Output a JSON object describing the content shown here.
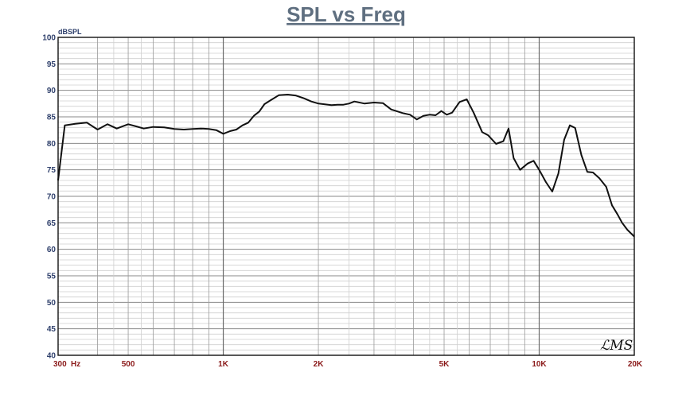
{
  "chart_data": {
    "type": "line",
    "title": "SPL vs Freq",
    "ylabel": "dBSPL",
    "xlabel": "",
    "x_scale": "log",
    "xlim": [
      300,
      20000
    ],
    "ylim": [
      40,
      100
    ],
    "grid": true,
    "y_ticks": [
      "100",
      "95",
      "90",
      "85",
      "80",
      "75",
      "70",
      "65",
      "60",
      "55",
      "50",
      "45",
      "40"
    ],
    "x_ticks": [
      {
        "value": 300,
        "label": "300"
      },
      {
        "value": 500,
        "label": "500"
      },
      {
        "value": 1000,
        "label": "1K"
      },
      {
        "value": 2000,
        "label": "2K"
      },
      {
        "value": 5000,
        "label": "5K"
      },
      {
        "value": 10000,
        "label": "10K"
      },
      {
        "value": 20000,
        "label": "20K"
      }
    ],
    "x_unit": "Hz",
    "line_color": "#111111",
    "series": [
      {
        "x": [
          300,
          315,
          340,
          370,
          400,
          430,
          460,
          500,
          530,
          560,
          600,
          650,
          700,
          750,
          800,
          850,
          900,
          950,
          1000,
          1050,
          1100,
          1150,
          1200,
          1250,
          1300,
          1350,
          1400,
          1500,
          1600,
          1700,
          1800,
          1900,
          2000,
          2200,
          2300,
          2400,
          2500,
          2600,
          2800,
          3000,
          3200,
          3400,
          3700,
          3900,
          4100,
          4300,
          4500,
          4700,
          4900,
          5100,
          5300,
          5600,
          5900,
          6200,
          6600,
          6900,
          7300,
          7700,
          8000,
          8300,
          8700,
          9200,
          9600,
          10000,
          10500,
          11000,
          11500,
          12000,
          12500,
          13000,
          13600,
          14200,
          14800,
          15500,
          16300,
          17000,
          17700,
          18300,
          19000,
          20000
        ],
        "y": [
          73.0,
          83.4,
          83.7,
          83.9,
          82.6,
          83.6,
          82.8,
          83.6,
          83.2,
          82.8,
          83.1,
          83.0,
          82.7,
          82.6,
          82.7,
          82.8,
          82.7,
          82.5,
          81.8,
          82.3,
          82.6,
          83.4,
          83.9,
          85.2,
          86.0,
          87.4,
          88.0,
          89.1,
          89.2,
          89.0,
          88.5,
          87.9,
          87.5,
          87.2,
          87.3,
          87.3,
          87.5,
          87.9,
          87.5,
          87.7,
          87.6,
          86.4,
          85.7,
          85.4,
          84.5,
          85.2,
          85.4,
          85.3,
          86.1,
          85.4,
          85.8,
          87.8,
          88.3,
          85.8,
          82.1,
          81.5,
          79.9,
          80.4,
          82.8,
          77.2,
          75.0,
          76.2,
          76.7,
          75.0,
          72.7,
          70.9,
          74.3,
          80.7,
          83.4,
          82.9,
          77.8,
          74.6,
          74.5,
          73.4,
          71.8,
          68.3,
          66.6,
          65.0,
          63.7,
          62.4
        ]
      }
    ]
  }
}
